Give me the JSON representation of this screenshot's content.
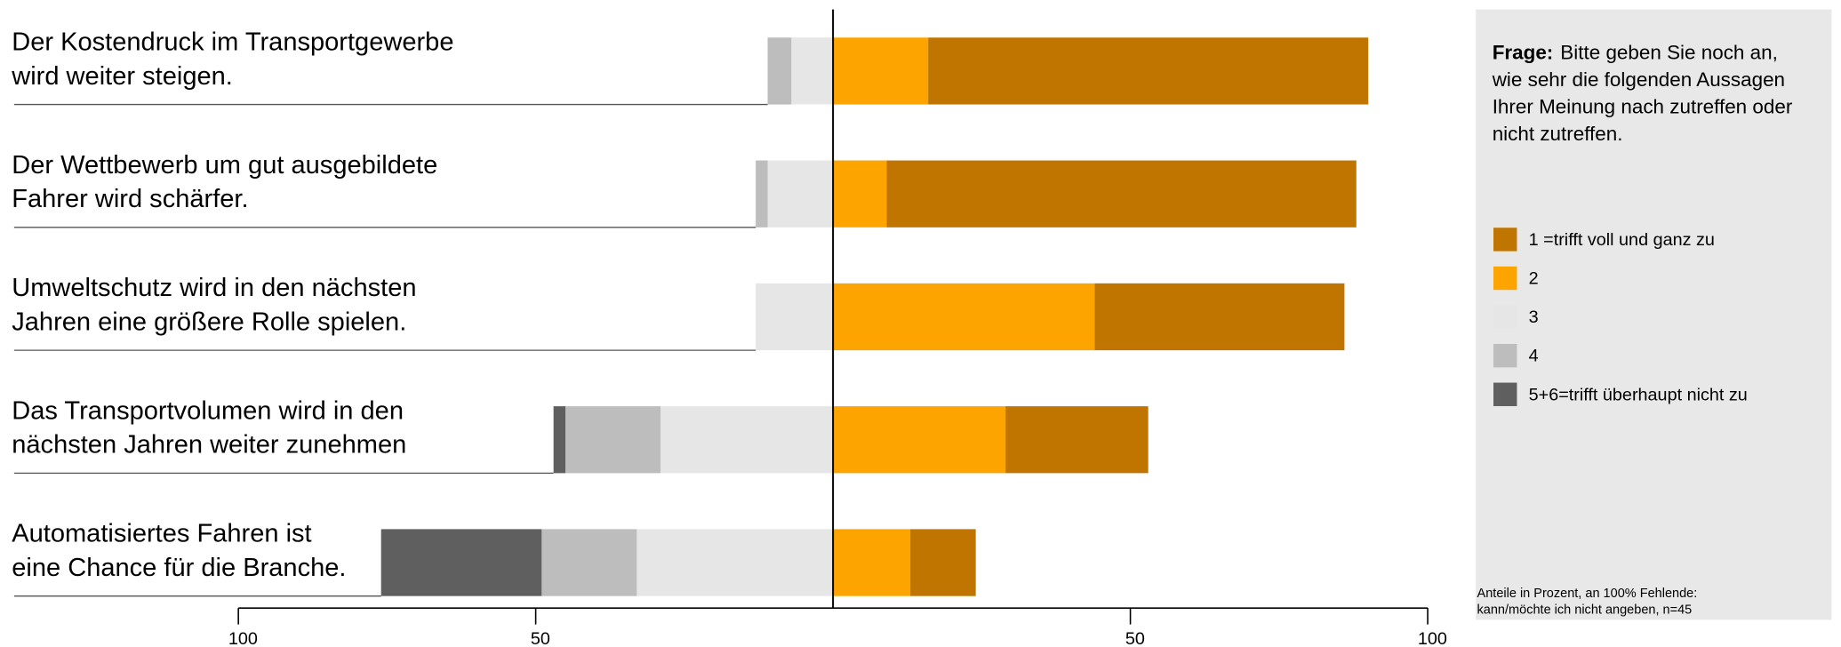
{
  "chart_data": {
    "type": "diverging_bar",
    "categories": [
      [
        "Der Kostendruck im Transportgewerbe",
        "wird weiter steigen."
      ],
      [
        "Der Wettbewerb um gut ausgebildete",
        "Fahrer wird schärfer."
      ],
      [
        "Umweltschutz wird in den nächsten",
        "Jahren eine größere Rolle spielen."
      ],
      [
        "Das Transportvolumen wird in den",
        "nächsten Jahren weiter zunehmen"
      ],
      [
        "Automatisiertes Fahren ist",
        "eine Chance für die Branche."
      ]
    ],
    "series": [
      {
        "name": "1 =trifft voll und ganz zu",
        "color": "#c07500",
        "values": [
          74,
          79,
          42,
          24,
          11
        ]
      },
      {
        "name": "2",
        "color": "#fda400",
        "values": [
          16,
          9,
          44,
          29,
          13
        ]
      },
      {
        "name": "3",
        "color": "#e6e6e6",
        "values": [
          -7,
          -11,
          -13,
          -29,
          -33
        ]
      },
      {
        "name": "4",
        "color": "#bdbdbd",
        "values": [
          -4,
          -2,
          0,
          -16,
          -16
        ]
      },
      {
        "name": "5+6=trifft überhaupt nicht zu",
        "color": "#5f5f5f",
        "values": [
          0,
          0,
          0,
          -2,
          -27
        ]
      }
    ],
    "xlim": [
      -100,
      100
    ],
    "xticks": [
      {
        "value": -100,
        "label": "100"
      },
      {
        "value": -50,
        "label": "50"
      },
      50,
      100
    ],
    "question_label": "Frage:",
    "question": [
      "Bitte geben Sie noch an,",
      "wie sehr die folgenden Aussagen",
      "Ihrer Meinung nach zutreffen oder",
      "nicht zutreffen."
    ],
    "footnote": [
      "Anteile in Prozent, an 100% Fehlende:",
      "kann/möchte ich nicht angeben, n=45"
    ]
  }
}
